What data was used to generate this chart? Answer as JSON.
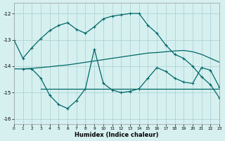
{
  "xlabel": "Humidex (Indice chaleur)",
  "xlim": [
    0,
    23
  ],
  "ylim": [
    -16.2,
    -11.6
  ],
  "yticks": [
    -16,
    -15,
    -14,
    -13,
    -12
  ],
  "xticks": [
    0,
    1,
    2,
    3,
    4,
    5,
    6,
    7,
    8,
    9,
    10,
    11,
    12,
    13,
    14,
    15,
    16,
    17,
    18,
    19,
    20,
    21,
    22,
    23
  ],
  "background_color": "#d6efef",
  "grid_color": "#aacfcf",
  "line_color": "#006868",
  "curve1_x": [
    0,
    1,
    2,
    3,
    4,
    5,
    6,
    7,
    8,
    9,
    10,
    11,
    12,
    13,
    14,
    15,
    16,
    17,
    18,
    19,
    20,
    21,
    22,
    23
  ],
  "curve1_y": [
    -13.0,
    -13.7,
    -13.3,
    -12.95,
    -12.65,
    -12.45,
    -12.35,
    -12.6,
    -12.75,
    -12.5,
    -12.2,
    -12.1,
    -12.05,
    -12.0,
    -12.0,
    -12.45,
    -12.75,
    -13.2,
    -13.55,
    -13.7,
    -14.0,
    -14.4,
    -14.7,
    -15.2
  ],
  "curve2_x": [
    0,
    1,
    2,
    3,
    4,
    5,
    6,
    7,
    8,
    9,
    10,
    11,
    12,
    13,
    14,
    15,
    16,
    17,
    18,
    19,
    20,
    21,
    22,
    23
  ],
  "curve2_y": [
    -14.1,
    -14.1,
    -14.08,
    -14.05,
    -14.02,
    -13.98,
    -13.95,
    -13.9,
    -13.85,
    -13.8,
    -13.75,
    -13.7,
    -13.65,
    -13.6,
    -13.55,
    -13.5,
    -13.48,
    -13.45,
    -13.42,
    -13.4,
    -13.45,
    -13.55,
    -13.7,
    -13.85
  ],
  "curve3_x": [
    3,
    4,
    5,
    6,
    7,
    8,
    9,
    10,
    11,
    12,
    13,
    14,
    15,
    16,
    17,
    18,
    19,
    20,
    21,
    22,
    23
  ],
  "curve3_y": [
    -14.85,
    -14.85,
    -14.85,
    -14.85,
    -14.85,
    -14.85,
    -14.85,
    -14.85,
    -14.85,
    -14.85,
    -14.85,
    -14.85,
    -14.85,
    -14.85,
    -14.85,
    -14.85,
    -14.85,
    -14.85,
    -14.85,
    -14.85,
    -14.85
  ],
  "curve4_x": [
    1,
    2,
    3,
    4,
    5,
    6,
    7,
    8,
    9,
    10,
    11,
    12,
    13,
    14,
    15,
    16,
    17,
    18,
    19,
    20,
    21,
    22,
    23
  ],
  "curve4_y": [
    -14.1,
    -14.1,
    -14.45,
    -15.1,
    -15.45,
    -15.6,
    -15.3,
    -14.85,
    -13.35,
    -14.65,
    -14.9,
    -15.0,
    -14.95,
    -14.85,
    -14.45,
    -14.05,
    -14.2,
    -14.45,
    -14.6,
    -14.65,
    -14.05,
    -14.15,
    -14.8
  ]
}
